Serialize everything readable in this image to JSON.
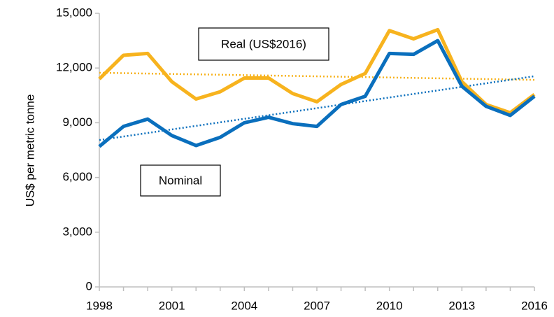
{
  "chart_data": {
    "type": "line",
    "y_label": "US$ per metric tonne",
    "x": [
      1998,
      1999,
      2000,
      2001,
      2002,
      2003,
      2004,
      2005,
      2006,
      2007,
      2008,
      2009,
      2010,
      2011,
      2012,
      2013,
      2014,
      2015,
      2016
    ],
    "xlim": [
      1998,
      2016
    ],
    "xticks": [
      1998,
      2001,
      2004,
      2007,
      2010,
      2013,
      2016
    ],
    "ylim": [
      0,
      15000
    ],
    "yticks": [
      0,
      {
        "value": 3000,
        "label": "3,000"
      },
      {
        "value": 6000,
        "label": "6,000"
      },
      {
        "value": 9000,
        "label": "9,000"
      },
      {
        "value": 12000,
        "label": "12,000"
      },
      {
        "value": 15000,
        "label": "15,000"
      }
    ],
    "series": [
      {
        "name": "Real (US$2016)",
        "color": "#f7b31e",
        "values": [
          11400,
          12700,
          12800,
          11250,
          10300,
          10700,
          11450,
          11450,
          10600,
          10150,
          11100,
          11700,
          14050,
          13600,
          14100,
          11250,
          10000,
          9550,
          10550
        ]
      },
      {
        "name": "Nominal",
        "color": "#0a6fbd",
        "values": [
          7700,
          8800,
          9200,
          8300,
          7750,
          8200,
          9000,
          9300,
          8950,
          8800,
          10000,
          10450,
          12800,
          12750,
          13500,
          11000,
          9900,
          9400,
          10450
        ]
      }
    ],
    "trendlines": [
      {
        "color": "#f7b31e",
        "x": [
          1998,
          2016
        ],
        "values": [
          11740,
          11350
        ]
      },
      {
        "color": "#0a6fbd",
        "x": [
          1998,
          2016
        ],
        "values": [
          8050,
          11550
        ]
      }
    ]
  }
}
